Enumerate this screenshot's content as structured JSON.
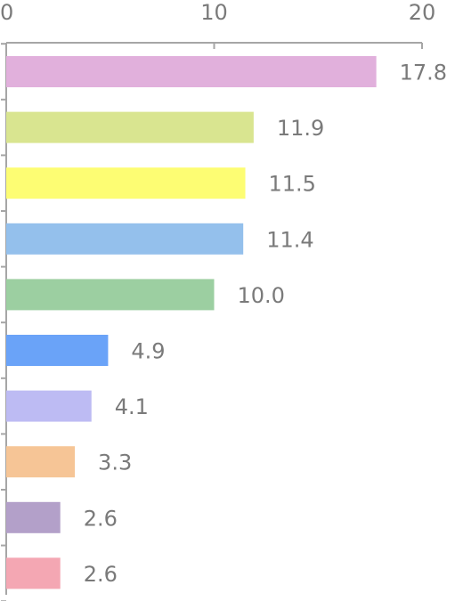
{
  "chart_data": {
    "type": "bar",
    "orientation": "horizontal",
    "title": "",
    "xlabel": "",
    "ylabel": "",
    "xlim": [
      0,
      20
    ],
    "x_ticks": [
      0,
      10,
      20
    ],
    "x_tick_labels": [
      "0",
      "10",
      "20"
    ],
    "axis_position": "top",
    "grid": false,
    "legend": "none",
    "values": [
      17.8,
      11.9,
      11.5,
      11.4,
      10.0,
      4.9,
      4.1,
      3.3,
      2.6,
      2.6
    ],
    "value_labels": [
      "17.8",
      "11.9",
      "11.5",
      "11.4",
      "10.0",
      "4.9",
      "4.1",
      "3.3",
      "2.6",
      "2.6"
    ],
    "bar_colors": [
      "#e1b0dc",
      "#d9e590",
      "#fdfd73",
      "#94c0ec",
      "#9ccfa1",
      "#6aa3f8",
      "#bdbbf3",
      "#f6c596",
      "#b3a0c9",
      "#f4a7b3"
    ]
  },
  "colors": {
    "axis": "#a6a6a6",
    "label_text": "#7a7a7a",
    "background": "#ffffff"
  }
}
